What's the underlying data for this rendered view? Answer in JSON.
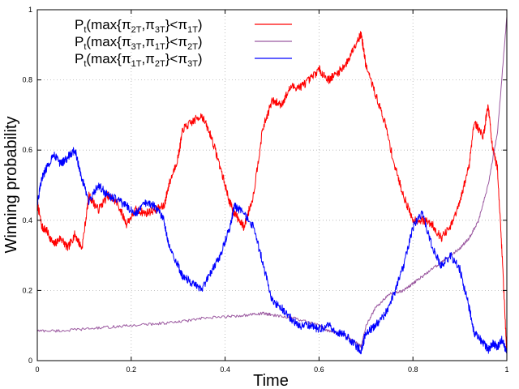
{
  "chart_data": {
    "type": "line",
    "title": "",
    "xlabel": "Time",
    "ylabel": "Winning probability",
    "xlim": [
      0,
      1
    ],
    "ylim": [
      0,
      1
    ],
    "grid": true,
    "legend_position": "top-right",
    "x_ticks": [
      "0",
      "0.2",
      "0.4",
      "0.6",
      "0.8",
      "1"
    ],
    "y_ticks": [
      "0",
      "0.2",
      "0.4",
      "0.6",
      "0.8",
      "1"
    ],
    "series": [
      {
        "name": "Pt(max{π2T,π3T}<π1T)",
        "legend": {
          "p": "P",
          "t": "t",
          "pre": "(max{π",
          "a": "2T",
          "mid": ",π",
          "b": "3T",
          "post": "}<π",
          "c": "1T",
          "end": ")"
        },
        "color": "#ff0000",
        "noise": 0.012,
        "x": [
          0,
          0.01,
          0.02,
          0.035,
          0.05,
          0.065,
          0.08,
          0.095,
          0.11,
          0.13,
          0.15,
          0.17,
          0.19,
          0.21,
          0.23,
          0.25,
          0.27,
          0.28,
          0.3,
          0.31,
          0.33,
          0.35,
          0.37,
          0.39,
          0.41,
          0.42,
          0.44,
          0.46,
          0.48,
          0.5,
          0.52,
          0.54,
          0.56,
          0.58,
          0.6,
          0.62,
          0.64,
          0.66,
          0.68,
          0.69,
          0.7,
          0.72,
          0.74,
          0.76,
          0.78,
          0.8,
          0.82,
          0.84,
          0.86,
          0.88,
          0.9,
          0.92,
          0.93,
          0.95,
          0.96,
          0.97,
          0.98,
          0.99,
          1.0
        ],
        "y": [
          0.45,
          0.38,
          0.37,
          0.33,
          0.35,
          0.32,
          0.36,
          0.32,
          0.47,
          0.43,
          0.47,
          0.45,
          0.39,
          0.43,
          0.42,
          0.43,
          0.44,
          0.5,
          0.58,
          0.66,
          0.68,
          0.7,
          0.64,
          0.55,
          0.45,
          0.42,
          0.38,
          0.47,
          0.66,
          0.74,
          0.73,
          0.78,
          0.78,
          0.8,
          0.83,
          0.8,
          0.82,
          0.85,
          0.91,
          0.93,
          0.84,
          0.76,
          0.68,
          0.56,
          0.47,
          0.4,
          0.4,
          0.39,
          0.35,
          0.38,
          0.45,
          0.56,
          0.68,
          0.64,
          0.73,
          0.6,
          0.55,
          0.3,
          0.02
        ]
      },
      {
        "name": "Pt(max{π3T,π1T}<π2T)",
        "legend": {
          "p": "P",
          "t": "t",
          "pre": "(max{π",
          "a": "3T",
          "mid": ",π",
          "b": "1T",
          "post": "}<π",
          "c": "2T",
          "end": ")"
        },
        "color": "#9b59a0",
        "noise": 0.004,
        "x": [
          0,
          0.05,
          0.1,
          0.15,
          0.2,
          0.25,
          0.3,
          0.35,
          0.4,
          0.45,
          0.48,
          0.5,
          0.55,
          0.6,
          0.62,
          0.65,
          0.68,
          0.69,
          0.7,
          0.72,
          0.75,
          0.78,
          0.8,
          0.82,
          0.85,
          0.87,
          0.9,
          0.92,
          0.94,
          0.96,
          0.98,
          1.0
        ],
        "y": [
          0.085,
          0.085,
          0.09,
          0.095,
          0.1,
          0.105,
          0.11,
          0.12,
          0.125,
          0.13,
          0.135,
          0.13,
          0.12,
          0.1,
          0.085,
          0.075,
          0.05,
          0.04,
          0.1,
          0.15,
          0.19,
          0.2,
          0.22,
          0.24,
          0.27,
          0.29,
          0.32,
          0.35,
          0.4,
          0.5,
          0.65,
          0.98
        ]
      },
      {
        "name": "Pt(max{π1T,π2T}<π3T)",
        "legend": {
          "p": "P",
          "t": "t",
          "pre": "(max{π",
          "a": "1T",
          "mid": ",π",
          "b": "2T",
          "post": "}<π",
          "c": "3T",
          "end": ")"
        },
        "color": "#0000ff",
        "noise": 0.012,
        "x": [
          0,
          0.01,
          0.02,
          0.035,
          0.05,
          0.065,
          0.08,
          0.095,
          0.11,
          0.13,
          0.15,
          0.17,
          0.19,
          0.21,
          0.23,
          0.25,
          0.27,
          0.28,
          0.3,
          0.31,
          0.33,
          0.35,
          0.37,
          0.39,
          0.41,
          0.42,
          0.44,
          0.46,
          0.48,
          0.5,
          0.52,
          0.54,
          0.56,
          0.58,
          0.6,
          0.62,
          0.64,
          0.66,
          0.68,
          0.69,
          0.7,
          0.72,
          0.74,
          0.76,
          0.78,
          0.8,
          0.82,
          0.84,
          0.86,
          0.88,
          0.9,
          0.92,
          0.93,
          0.95,
          0.96,
          0.97,
          0.98,
          0.99,
          1.0
        ],
        "y": [
          0.45,
          0.52,
          0.55,
          0.59,
          0.56,
          0.58,
          0.6,
          0.52,
          0.45,
          0.5,
          0.47,
          0.46,
          0.44,
          0.42,
          0.45,
          0.44,
          0.4,
          0.33,
          0.27,
          0.24,
          0.22,
          0.2,
          0.25,
          0.3,
          0.38,
          0.44,
          0.42,
          0.38,
          0.28,
          0.17,
          0.15,
          0.12,
          0.1,
          0.1,
          0.09,
          0.1,
          0.08,
          0.07,
          0.04,
          0.03,
          0.08,
          0.1,
          0.13,
          0.19,
          0.27,
          0.38,
          0.42,
          0.33,
          0.27,
          0.3,
          0.26,
          0.15,
          0.08,
          0.05,
          0.03,
          0.05,
          0.04,
          0.06,
          0.02
        ]
      }
    ]
  }
}
